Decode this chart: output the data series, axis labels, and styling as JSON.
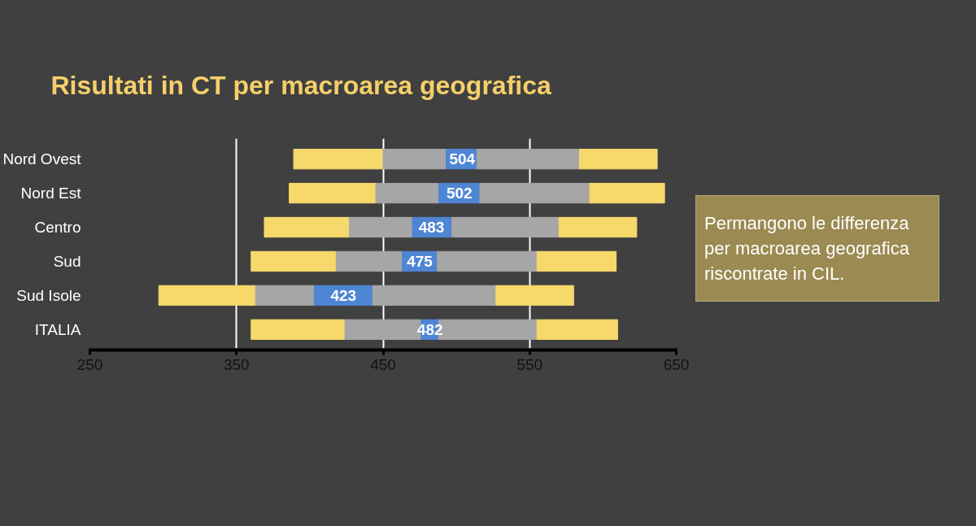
{
  "chart_data": {
    "type": "bar",
    "orientation": "horizontal",
    "title": "Risultati in CT  per macroarea geografica",
    "categories": [
      "Nord Ovest",
      "Nord Est",
      "Centro",
      "Sud",
      "Sud Isole",
      "ITALIA"
    ],
    "series": [
      {
        "color": "#f7d96b",
        "base": [
          389,
          386,
          369,
          360,
          297,
          360
        ],
        "values": [
          61,
          59,
          58,
          58,
          66,
          64
        ]
      },
      {
        "color": "#a6a6a6",
        "base": [
          450,
          445,
          427,
          418,
          363,
          424
        ],
        "values": [
          43,
          43,
          43,
          45,
          40,
          52
        ]
      },
      {
        "color": "#4f86d4",
        "base": [
          493,
          488,
          470,
          463,
          403,
          476
        ],
        "values": [
          11,
          14,
          13,
          12,
          20,
          6
        ]
      },
      {
        "color": "#4f86d4",
        "base": [
          504,
          502,
          483,
          475,
          423,
          482
        ],
        "values": [
          10,
          14,
          14,
          12,
          20,
          6
        ]
      },
      {
        "color": "#a6a6a6",
        "base": [
          514,
          516,
          497,
          487,
          443,
          488
        ],
        "values": [
          70,
          75,
          73,
          68,
          84,
          67
        ]
      },
      {
        "color": "#f7d96b",
        "base": [
          584,
          591,
          570,
          555,
          527,
          555
        ],
        "values": [
          53,
          51,
          53,
          54,
          53,
          55
        ]
      }
    ],
    "xlim": [
      250,
      650
    ],
    "xticks": [
      250,
      350,
      450,
      550,
      650
    ],
    "grid": "x",
    "annotations": [
      {
        "text": "504",
        "x": 504,
        "y": "Nord Ovest"
      },
      {
        "text": "502",
        "x": 502,
        "y": "Nord Est"
      },
      {
        "text": "483",
        "x": 483,
        "y": "Centro"
      },
      {
        "text": "475",
        "x": 475,
        "y": "Sud"
      },
      {
        "text": "423",
        "x": 423,
        "y": "Sud Isole"
      },
      {
        "text": "482",
        "x": 482,
        "y": "ITALIA"
      },
      "Permangono le differenza per macroarea geografica riscontrate in CIL."
    ]
  }
}
